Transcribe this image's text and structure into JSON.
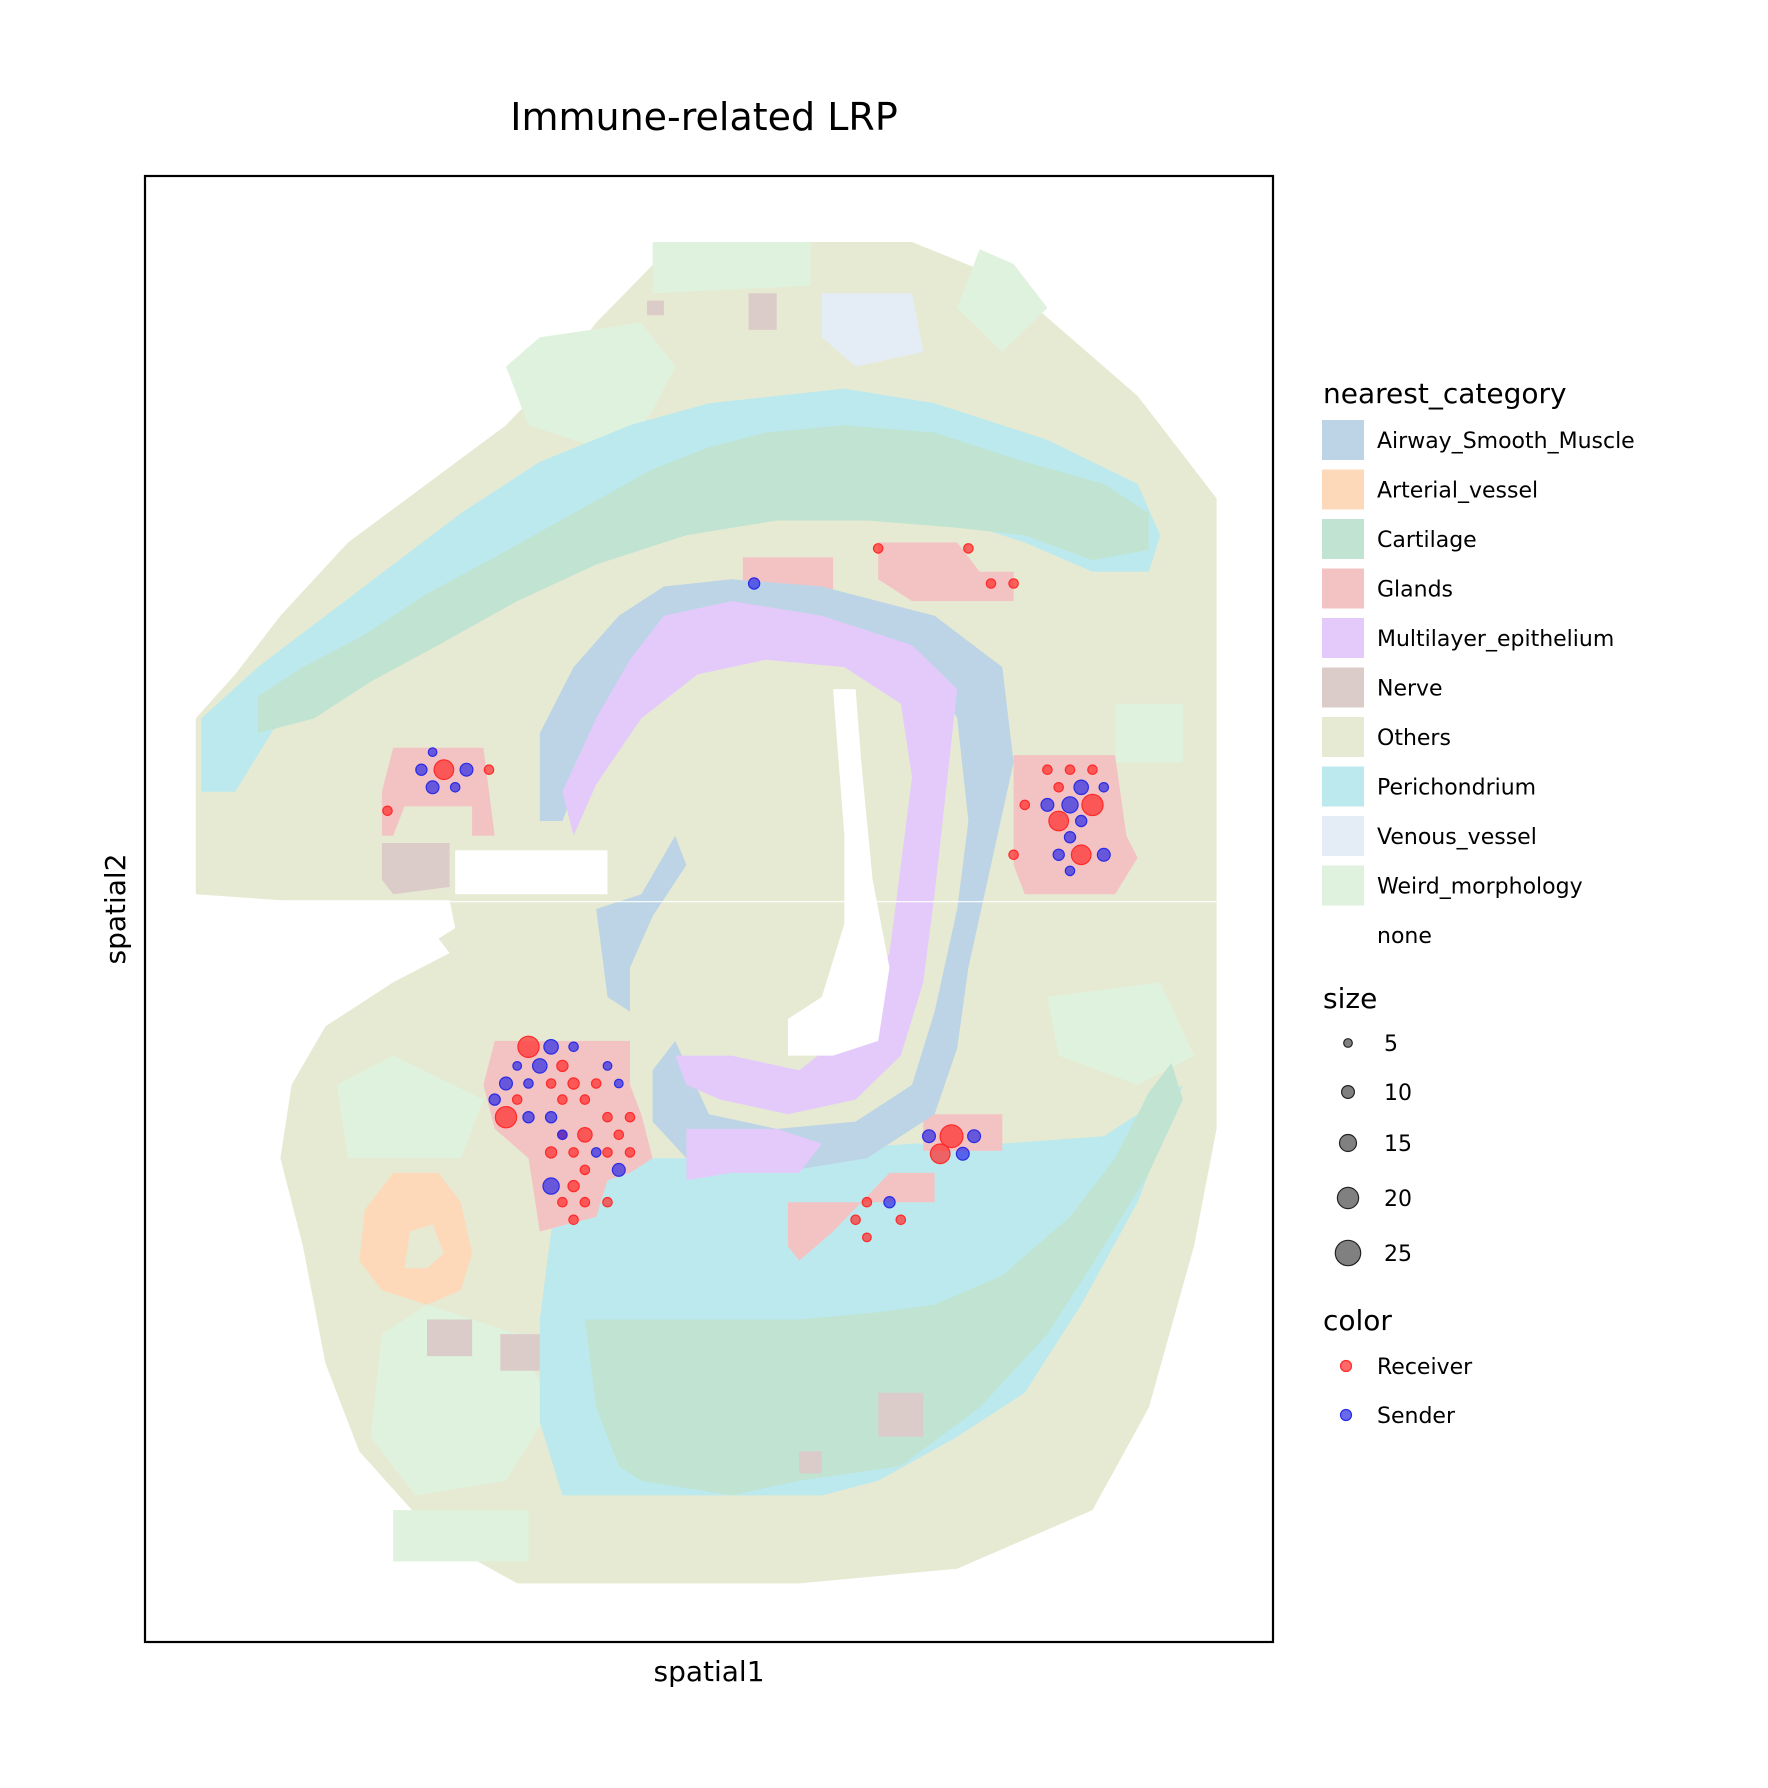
{
  "chart_data": {
    "type": "scatter",
    "title": "Immune-related LRP",
    "xlabel": "spatial1",
    "ylabel": "spatial2",
    "xlim": [
      0,
      100
    ],
    "ylim": [
      0,
      100
    ],
    "grid": false,
    "legend_position": "right",
    "background_tissue_regions": {
      "legend_title": "nearest_category",
      "categories": [
        {
          "name": "Airway_Smooth_Muscle",
          "color": "#bcd4e6"
        },
        {
          "name": "Arterial_vessel",
          "color": "#fdd8b9"
        },
        {
          "name": "Cartilage",
          "color": "#c0e3d2"
        },
        {
          "name": "Glands",
          "color": "#f3c3c3"
        },
        {
          "name": "Multilayer_epithelium",
          "color": "#e4cafb"
        },
        {
          "name": "Nerve",
          "color": "#dcccc9"
        },
        {
          "name": "Others",
          "color": "#e6ead3"
        },
        {
          "name": "Perichondrium",
          "color": "#bce9ed"
        },
        {
          "name": "Venous_vessel",
          "color": "#e4edf6"
        },
        {
          "name": "Weird_morphology",
          "color": "#dff2dd"
        },
        {
          "name": "none",
          "color": "#ffffff"
        }
      ]
    },
    "size_legend": {
      "title": "size",
      "values": [
        5,
        10,
        15,
        20,
        25
      ]
    },
    "color_legend": {
      "title": "color",
      "entries": [
        {
          "name": "Receiver",
          "color": "#ff2a2a"
        },
        {
          "name": "Sender",
          "color": "#2a2ae6"
        }
      ]
    },
    "series": [
      {
        "name": "Receiver",
        "color": "#ff2a2a",
        "points": [
          {
            "x": 65,
            "y": 74.6,
            "size": 6
          },
          {
            "x": 73,
            "y": 74.6,
            "size": 6
          },
          {
            "x": 75,
            "y": 72.2,
            "size": 6
          },
          {
            "x": 77,
            "y": 72.2,
            "size": 6
          },
          {
            "x": 26.5,
            "y": 59.5,
            "size": 18
          },
          {
            "x": 30.5,
            "y": 59.5,
            "size": 6
          },
          {
            "x": 21.5,
            "y": 56.7,
            "size": 6
          },
          {
            "x": 80,
            "y": 59.5,
            "size": 6
          },
          {
            "x": 82,
            "y": 59.5,
            "size": 6
          },
          {
            "x": 84,
            "y": 59.5,
            "size": 6
          },
          {
            "x": 81,
            "y": 58.3,
            "size": 6
          },
          {
            "x": 78,
            "y": 57.1,
            "size": 6
          },
          {
            "x": 84,
            "y": 57.1,
            "size": 20
          },
          {
            "x": 81,
            "y": 56,
            "size": 18
          },
          {
            "x": 77,
            "y": 53.7,
            "size": 6
          },
          {
            "x": 83,
            "y": 53.7,
            "size": 18
          },
          {
            "x": 34,
            "y": 40.6,
            "size": 20
          },
          {
            "x": 37,
            "y": 39.3,
            "size": 8
          },
          {
            "x": 36,
            "y": 38.1,
            "size": 6
          },
          {
            "x": 38,
            "y": 38.1,
            "size": 8
          },
          {
            "x": 40,
            "y": 38.1,
            "size": 6
          },
          {
            "x": 33,
            "y": 37,
            "size": 6
          },
          {
            "x": 37,
            "y": 37,
            "size": 6
          },
          {
            "x": 39,
            "y": 37,
            "size": 6
          },
          {
            "x": 32,
            "y": 35.8,
            "size": 20
          },
          {
            "x": 41,
            "y": 35.8,
            "size": 6
          },
          {
            "x": 43,
            "y": 35.8,
            "size": 6
          },
          {
            "x": 37,
            "y": 34.6,
            "size": 6
          },
          {
            "x": 39,
            "y": 34.6,
            "size": 12
          },
          {
            "x": 42,
            "y": 34.6,
            "size": 6
          },
          {
            "x": 36,
            "y": 33.4,
            "size": 8
          },
          {
            "x": 38,
            "y": 33.4,
            "size": 6
          },
          {
            "x": 41,
            "y": 33.4,
            "size": 6
          },
          {
            "x": 43,
            "y": 33.4,
            "size": 6
          },
          {
            "x": 39,
            "y": 32.2,
            "size": 6
          },
          {
            "x": 38,
            "y": 31.1,
            "size": 8
          },
          {
            "x": 37,
            "y": 30,
            "size": 6
          },
          {
            "x": 39,
            "y": 30,
            "size": 6
          },
          {
            "x": 41,
            "y": 30,
            "size": 6
          },
          {
            "x": 38,
            "y": 28.8,
            "size": 6
          },
          {
            "x": 71.5,
            "y": 34.5,
            "size": 22
          },
          {
            "x": 70.5,
            "y": 33.3,
            "size": 18
          },
          {
            "x": 64,
            "y": 30,
            "size": 6
          },
          {
            "x": 63,
            "y": 28.8,
            "size": 6
          },
          {
            "x": 67,
            "y": 28.8,
            "size": 6
          },
          {
            "x": 64,
            "y": 27.6,
            "size": 5
          }
        ]
      },
      {
        "name": "Sender",
        "color": "#2a2ae6",
        "points": [
          {
            "x": 54,
            "y": 72.2,
            "size": 8
          },
          {
            "x": 25.5,
            "y": 60.7,
            "size": 5
          },
          {
            "x": 24.5,
            "y": 59.5,
            "size": 8
          },
          {
            "x": 28.5,
            "y": 59.5,
            "size": 10
          },
          {
            "x": 25.5,
            "y": 58.3,
            "size": 10
          },
          {
            "x": 27.5,
            "y": 58.3,
            "size": 6
          },
          {
            "x": 83,
            "y": 58.3,
            "size": 12
          },
          {
            "x": 85,
            "y": 58.3,
            "size": 6
          },
          {
            "x": 80,
            "y": 57.1,
            "size": 10
          },
          {
            "x": 82,
            "y": 57.1,
            "size": 14
          },
          {
            "x": 83,
            "y": 56,
            "size": 8
          },
          {
            "x": 82,
            "y": 54.9,
            "size": 8
          },
          {
            "x": 81,
            "y": 53.7,
            "size": 8
          },
          {
            "x": 85,
            "y": 53.7,
            "size": 10
          },
          {
            "x": 82,
            "y": 52.6,
            "size": 6
          },
          {
            "x": 36,
            "y": 40.6,
            "size": 12
          },
          {
            "x": 38,
            "y": 40.6,
            "size": 6
          },
          {
            "x": 33,
            "y": 39.3,
            "size": 5
          },
          {
            "x": 35,
            "y": 39.3,
            "size": 12
          },
          {
            "x": 41,
            "y": 39.3,
            "size": 5
          },
          {
            "x": 32,
            "y": 38.1,
            "size": 10
          },
          {
            "x": 34,
            "y": 38.1,
            "size": 6
          },
          {
            "x": 42,
            "y": 38.1,
            "size": 5
          },
          {
            "x": 31,
            "y": 37,
            "size": 8
          },
          {
            "x": 34,
            "y": 35.8,
            "size": 8
          },
          {
            "x": 36,
            "y": 35.8,
            "size": 8
          },
          {
            "x": 37,
            "y": 34.6,
            "size": 6
          },
          {
            "x": 40,
            "y": 33.4,
            "size": 6
          },
          {
            "x": 42,
            "y": 32.2,
            "size": 10
          },
          {
            "x": 36,
            "y": 31.1,
            "size": 14
          },
          {
            "x": 69.5,
            "y": 34.5,
            "size": 10
          },
          {
            "x": 73.5,
            "y": 34.5,
            "size": 10
          },
          {
            "x": 72.5,
            "y": 33.3,
            "size": 10
          },
          {
            "x": 66,
            "y": 30,
            "size": 8
          }
        ]
      }
    ]
  }
}
